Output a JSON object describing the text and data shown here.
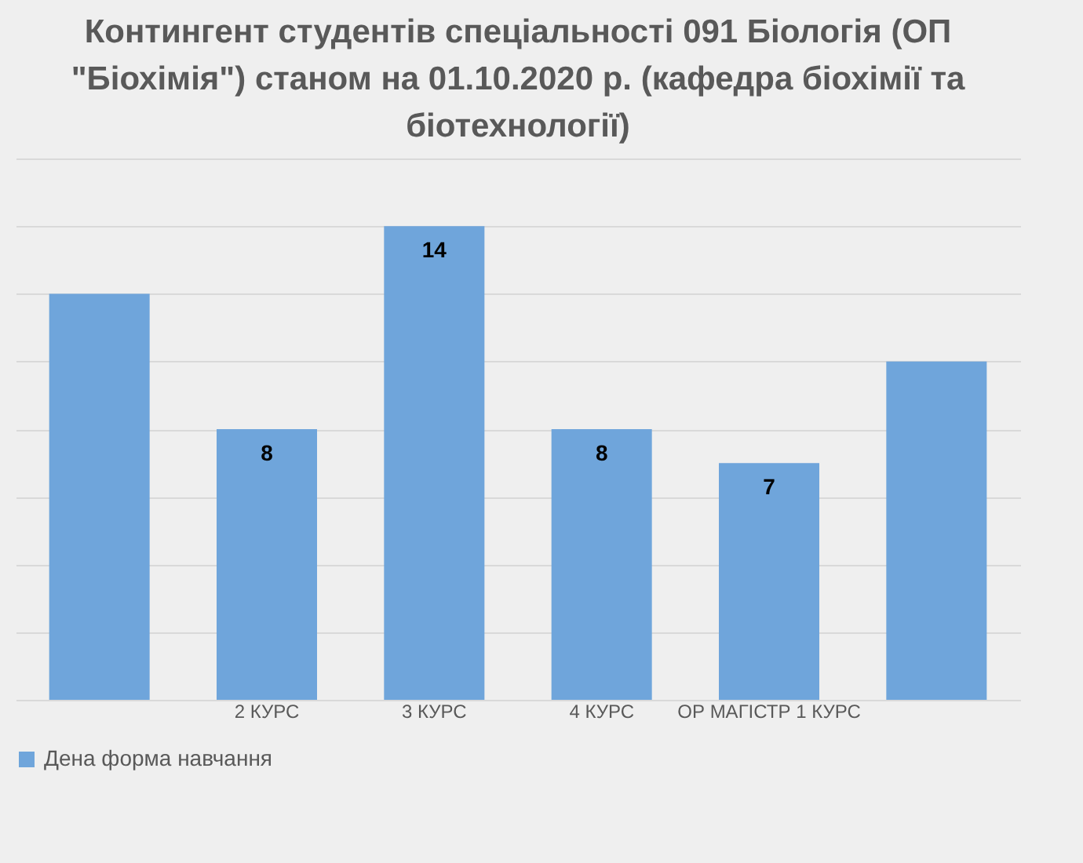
{
  "chart_data": {
    "type": "bar",
    "title": "Контингент студентів спеціальності 091 Біологія (ОП \"Біохімія\") станом на 01.10.2020 р. (кафедра біохімії та біотехнології)",
    "categories": [
      null,
      "2 КУРС",
      "3 КУРС",
      "4 КУРС",
      "ОР МАГІСТР 1 КУРС",
      null
    ],
    "series": [
      {
        "name": "Дена форма навчання",
        "color": "#6fa5db",
        "values": [
          12,
          8,
          14,
          8,
          7,
          10
        ],
        "value_labels": [
          null,
          "8",
          "14",
          "8",
          "7",
          null
        ]
      }
    ],
    "ylim": [
      0,
      16
    ],
    "yticks": [
      {
        "value": 0,
        "label": null
      },
      {
        "value": 2,
        "label": null
      },
      {
        "value": 4,
        "label": null
      },
      {
        "value": 6,
        "label": null
      },
      {
        "value": 8,
        "label": null
      },
      {
        "value": 10,
        "label": null
      },
      {
        "value": 12,
        "label": null
      },
      {
        "value": 14,
        "label": null
      },
      {
        "value": 16,
        "label": null
      }
    ],
    "grid": "y",
    "legend": "bottom",
    "tick_labels": "x"
  }
}
